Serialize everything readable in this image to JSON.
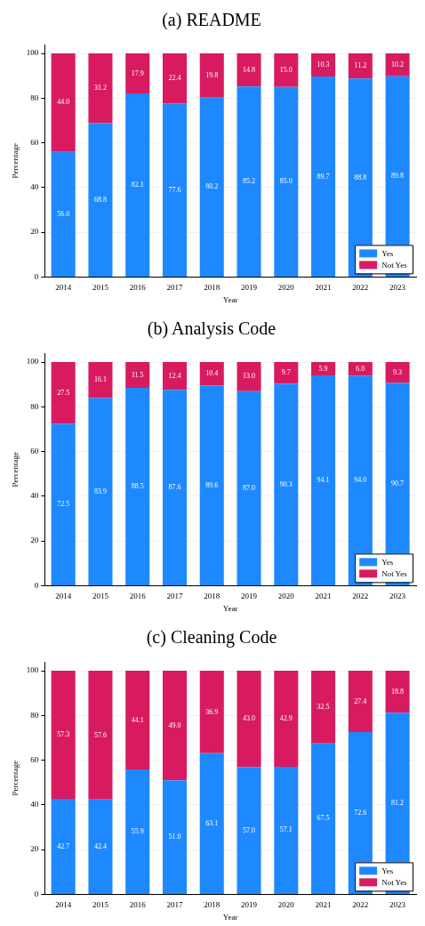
{
  "chart_data": [
    {
      "type": "bar",
      "title": "(a) README",
      "xlabel": "Year",
      "ylabel": "Percentage",
      "categories": [
        "2014",
        "2015",
        "2016",
        "2017",
        "2018",
        "2019",
        "2020",
        "2021",
        "2022",
        "2023"
      ],
      "stacked": true,
      "legend": "bottom right",
      "grid": "y",
      "ylim": [
        0,
        104
      ],
      "yticks": [
        0,
        20,
        40,
        60,
        80,
        100
      ],
      "series": [
        {
          "name": "Yes",
          "color": "#1e88ff",
          "values": [
            56.0,
            68.8,
            82.1,
            77.6,
            80.2,
            85.2,
            85.0,
            89.7,
            88.8,
            89.8
          ],
          "value_labels": [
            "56.0",
            "68.8",
            "82.1",
            "77.6",
            "80.2",
            "85.2",
            "85.0",
            "89.7",
            "88.8",
            "89.8"
          ]
        },
        {
          "name": "Not Yes",
          "color": "#d81b60",
          "values": [
            44.0,
            31.2,
            17.9,
            22.4,
            19.8,
            14.8,
            15.0,
            10.3,
            11.2,
            10.2
          ],
          "value_labels": [
            "44.0",
            "31.2",
            "17.9",
            "22.4",
            "19.8",
            "14.8",
            "15.0",
            "10.3",
            "11.2",
            "10.2"
          ]
        }
      ]
    },
    {
      "type": "bar",
      "title": "(b) Analysis Code",
      "xlabel": "Year",
      "ylabel": "Percentage",
      "categories": [
        "2014",
        "2015",
        "2016",
        "2017",
        "2018",
        "2019",
        "2020",
        "2021",
        "2022",
        "2023"
      ],
      "stacked": true,
      "legend": "bottom right",
      "grid": "y",
      "ylim": [
        0,
        104
      ],
      "yticks": [
        0,
        20,
        40,
        60,
        80,
        100
      ],
      "series": [
        {
          "name": "Yes",
          "color": "#1e88ff",
          "values": [
            72.5,
            83.9,
            88.5,
            87.6,
            89.6,
            87.0,
            90.3,
            94.1,
            94.0,
            90.7
          ],
          "value_labels": [
            "72.5",
            "83.9",
            "88.5",
            "87.6",
            "89.6",
            "87.0",
            "90.3",
            "94.1",
            "94.0",
            "90.7"
          ]
        },
        {
          "name": "Not Yes",
          "color": "#d81b60",
          "values": [
            27.5,
            16.1,
            11.5,
            12.4,
            10.4,
            13.0,
            9.7,
            5.9,
            6.0,
            9.3
          ],
          "value_labels": [
            "27.5",
            "16.1",
            "11.5",
            "12.4",
            "10.4",
            "13.0",
            "9.7",
            "5.9",
            "6.0",
            "9.3"
          ]
        }
      ]
    },
    {
      "type": "bar",
      "title": "(c) Cleaning Code",
      "xlabel": "Year",
      "ylabel": "Percentage",
      "categories": [
        "2014",
        "2015",
        "2016",
        "2017",
        "2018",
        "2019",
        "2020",
        "2021",
        "2022",
        "2023"
      ],
      "stacked": true,
      "legend": "bottom right",
      "grid": "y",
      "ylim": [
        0,
        104
      ],
      "yticks": [
        0,
        20,
        40,
        60,
        80,
        100
      ],
      "series": [
        {
          "name": "Yes",
          "color": "#1e88ff",
          "values": [
            42.7,
            42.4,
            55.9,
            51.0,
            63.1,
            57.0,
            57.1,
            67.5,
            72.6,
            81.2
          ],
          "value_labels": [
            "42.7",
            "42.4",
            "55.9",
            "51.0",
            "63.1",
            "57.0",
            "57.1",
            "67.5",
            "72.6",
            "81.2"
          ]
        },
        {
          "name": "Not Yes",
          "color": "#d81b60",
          "values": [
            57.3,
            57.6,
            44.1,
            49.0,
            36.9,
            43.0,
            42.9,
            32.5,
            27.4,
            18.8
          ],
          "value_labels": [
            "57.3",
            "57.6",
            "44.1",
            "49.0",
            "36.9",
            "43.0",
            "42.9",
            "32.5",
            "27.4",
            "18.8"
          ]
        }
      ]
    }
  ]
}
